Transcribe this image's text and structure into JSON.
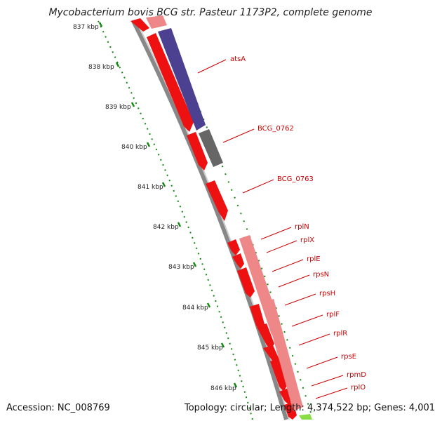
{
  "title": "Mycobacterium bovis BCG str. Pasteur 1173P2, complete genome",
  "footer": {
    "accession": "Accession: NC_008769",
    "topology": "Topology: circular; Length: 4,374,522 bp; Genes: 4,001"
  },
  "ticks": [
    "837 kbp",
    "838 kbp",
    "839 kbp",
    "840 kbp",
    "841 kbp",
    "842 kbp",
    "843 kbp",
    "844 kbp",
    "845 kbp",
    "846 kbp"
  ],
  "gene_labels": [
    "atsA",
    "BCG_0762",
    "BCG_0763",
    "rplN",
    "rplX",
    "rplE",
    "rpsN",
    "rpsH",
    "rplF",
    "rplR",
    "rpsE",
    "rpmD",
    "rplO"
  ],
  "colors": {
    "gene_red": "#ee1111",
    "gene_pink": "#ee8888",
    "gene_blue": "#4b4190",
    "gene_gray": "#666666",
    "gene_green": "#88dd44",
    "backbone": "#888888",
    "tick_green": "#118811",
    "label_red": "#cc0000"
  }
}
